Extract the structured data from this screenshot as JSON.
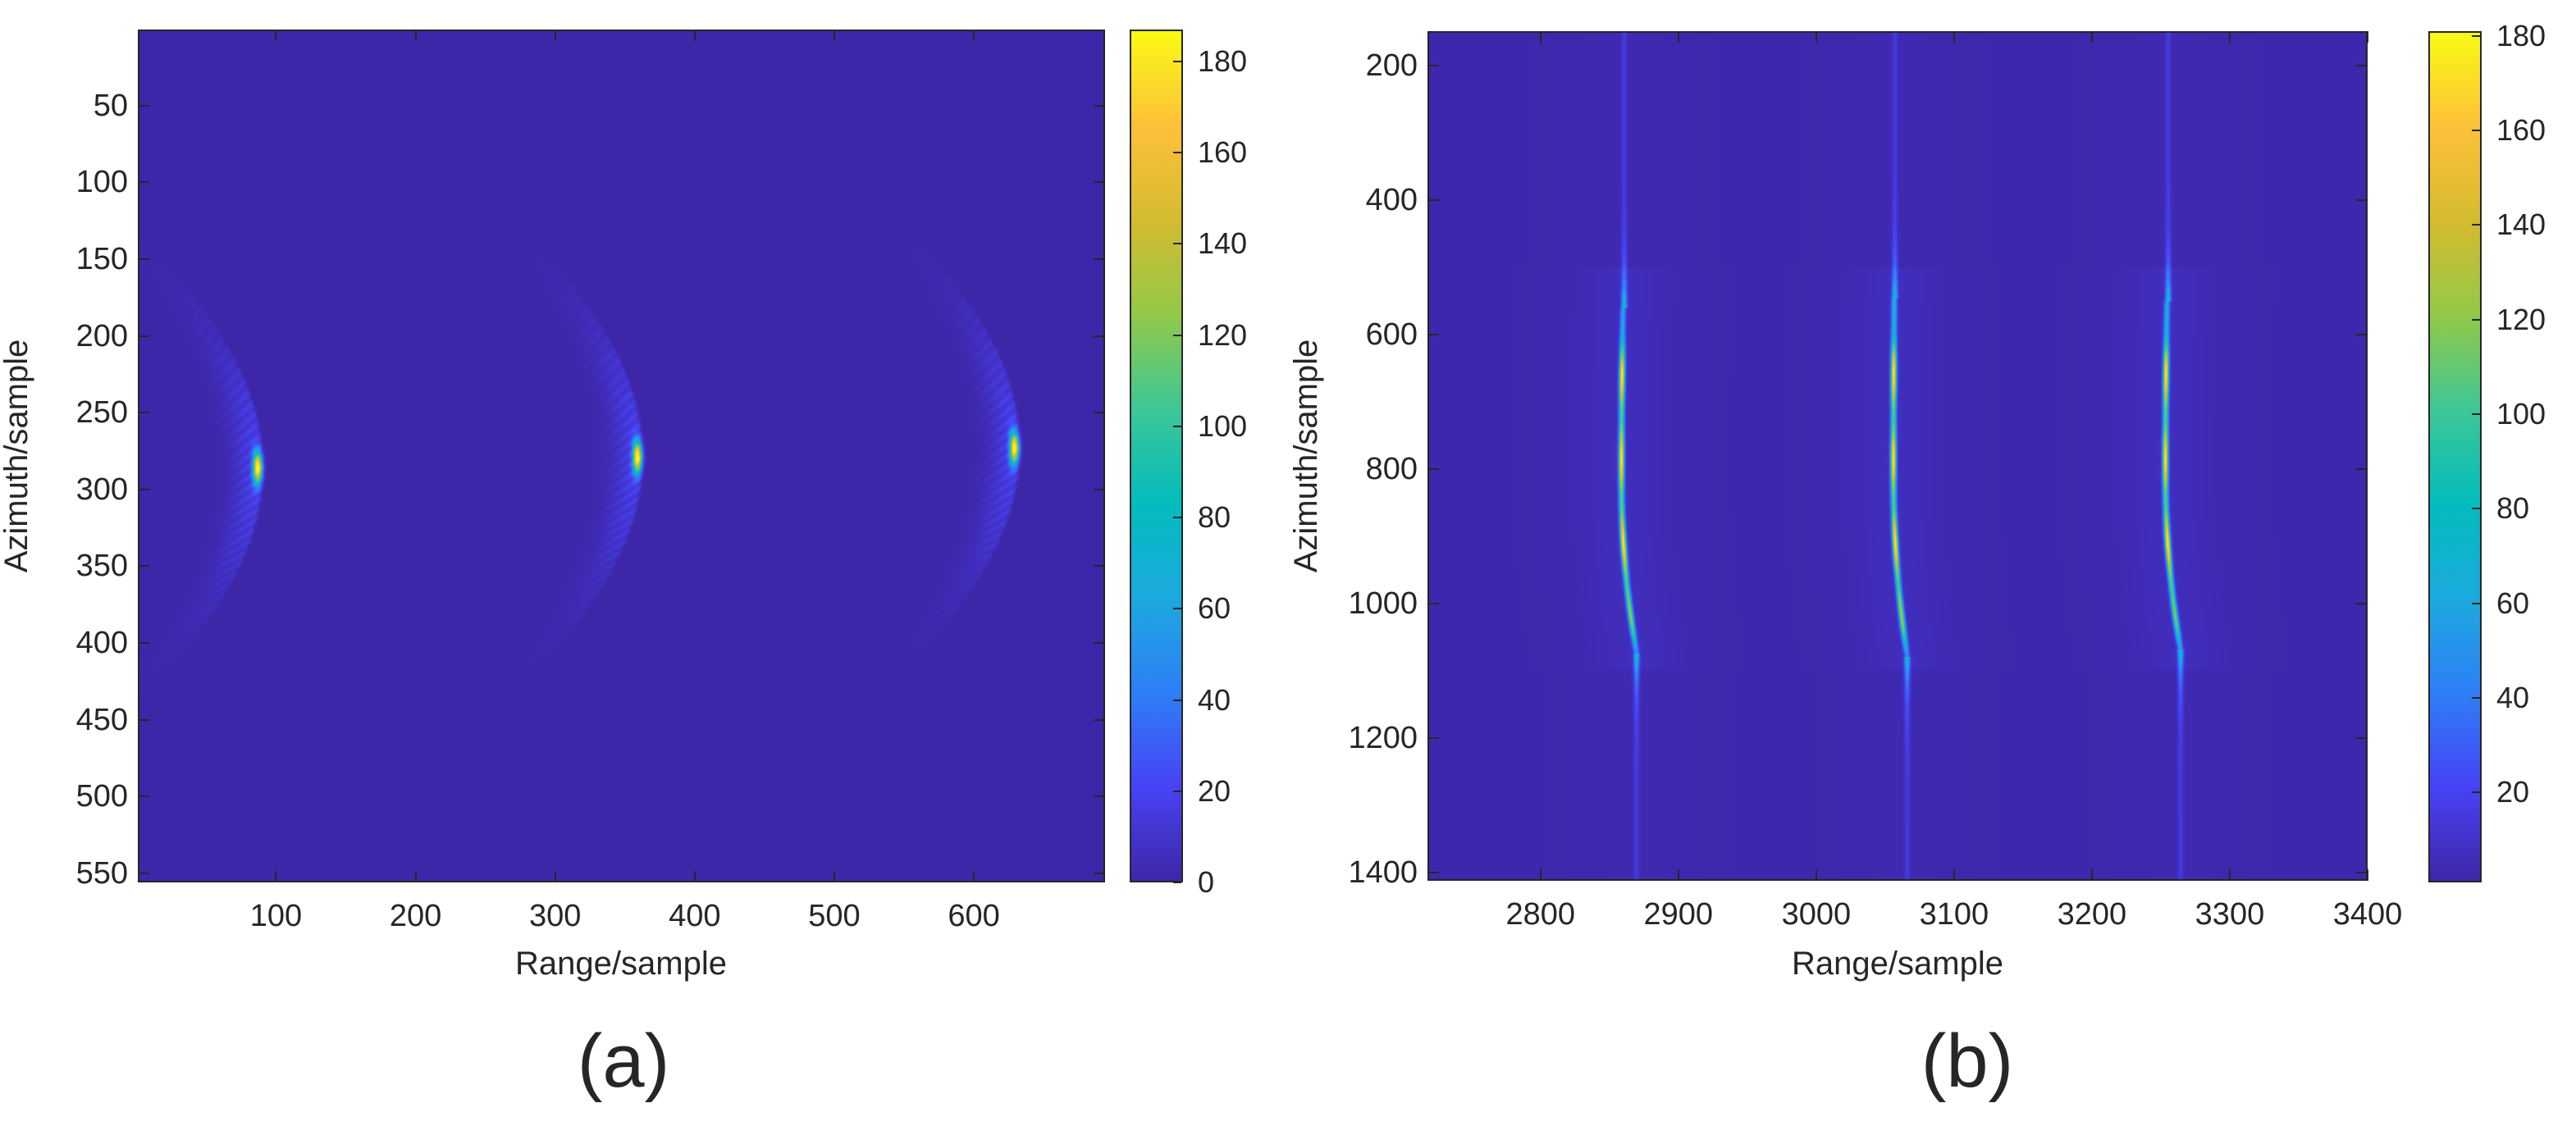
{
  "figure": {
    "panel_labels": [
      "(a)",
      "(b)"
    ]
  },
  "chart_data": [
    {
      "type": "heatmap",
      "panel": "(a)",
      "title": "",
      "xlabel": "Range/sample",
      "ylabel": "Azimuth/sample",
      "xlim": [
        1,
        694
      ],
      "ylim": [
        0.5,
        556
      ],
      "y_reversed": true,
      "xticks": [
        100,
        200,
        300,
        400,
        500,
        600
      ],
      "yticks": [
        50,
        100,
        150,
        200,
        250,
        300,
        350,
        400,
        450,
        500,
        550
      ],
      "colormap": "parula",
      "colorbar": {
        "range": [
          0,
          187
        ],
        "ticks": [
          0,
          20,
          40,
          60,
          80,
          100,
          120,
          140,
          160,
          180
        ]
      },
      "background_value": 0,
      "grid": false,
      "targets": [
        {
          "range": 86,
          "azimuth": 286,
          "peak": 180,
          "spread_azimuth": 55,
          "spread_range": 12,
          "curvature": -0.25
        },
        {
          "range": 359,
          "azimuth": 279,
          "peak": 182,
          "spread_azimuth": 55,
          "spread_range": 12,
          "curvature": -0.25
        },
        {
          "range": 630,
          "azimuth": 273,
          "peak": 178,
          "spread_azimuth": 55,
          "spread_range": 12,
          "curvature": -0.25
        }
      ]
    },
    {
      "type": "heatmap",
      "panel": "(b)",
      "title": "",
      "xlabel": "Range/sample",
      "ylabel": "Azimuth/sample",
      "xlim": [
        2718,
        3400
      ],
      "ylim": [
        149,
        1412
      ],
      "y_reversed": true,
      "xticks": [
        2800,
        2900,
        3000,
        3100,
        3200,
        3300,
        3400
      ],
      "yticks": [
        200,
        400,
        600,
        800,
        1000,
        1200,
        1400
      ],
      "colormap": "parula",
      "colorbar": {
        "range": [
          1,
          181
        ],
        "ticks": [
          20,
          40,
          60,
          80,
          100,
          120,
          140,
          160,
          180
        ]
      },
      "background_value": 2,
      "grid": false,
      "targets": [
        {
          "range_top": 2860,
          "range_mid": 2858,
          "range_bottom": 2869,
          "azimuth_bright_start": 560,
          "azimuth_bright_end": 1075,
          "azimuth_faint_start": 150,
          "azimuth_faint_end": 1412,
          "peak": 170
        },
        {
          "range_top": 3057,
          "range_mid": 3056,
          "range_bottom": 3066,
          "azimuth_bright_start": 545,
          "azimuth_bright_end": 1080,
          "azimuth_faint_start": 150,
          "azimuth_faint_end": 1412,
          "peak": 170
        },
        {
          "range_top": 3256,
          "range_mid": 3254,
          "range_bottom": 3265,
          "azimuth_bright_start": 550,
          "azimuth_bright_end": 1070,
          "azimuth_faint_start": 150,
          "azimuth_faint_end": 1412,
          "peak": 170
        }
      ]
    }
  ],
  "colors": {
    "parula_stops": [
      "#3e26a8",
      "#4743f4",
      "#2e7ff7",
      "#1ca9de",
      "#02bcbd",
      "#3ec796",
      "#93c948",
      "#d5bb2f",
      "#fec13a",
      "#f9fa14"
    ],
    "axes_line": "#262626",
    "background": "#ffffff"
  }
}
